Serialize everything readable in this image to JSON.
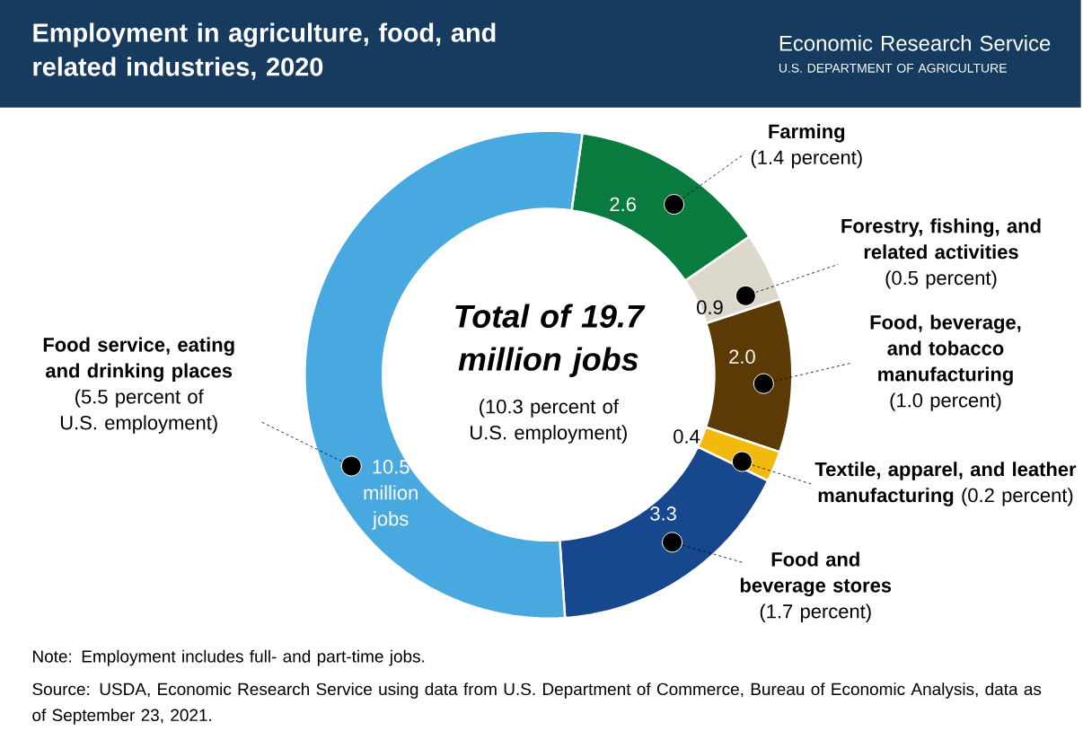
{
  "chart_data": {
    "type": "donut",
    "title": "Employment in agriculture, food, and related industries, 2020",
    "categories": [
      "**Farming** (1.4 percent)",
      "**Forestry, fishing, and related activities** (0.5 percent)",
      "**Food, beverage, and tobacco manufacturing** (1.0 percent)",
      "**Textile, apparel, and leather manufacturing** (0.2 percent)",
      "**Food and beverage stores** (1.7 percent)",
      "**Food service, eating and drinking places** (5.5 percent of U.S. employment)"
    ],
    "values": [
      2.6,
      0.9,
      2.0,
      0.4,
      3.3,
      10.5
    ],
    "value_labels": [
      "2.6",
      "0.9",
      "2.0",
      "0.4",
      "3.3",
      "10.5 million jobs"
    ],
    "legend": false,
    "colors": [
      "#0a7b3e",
      "#dcd8cc",
      "#5c3a06",
      "#f2b90f",
      "#17478c",
      "#47a9e0"
    ],
    "annotations": [
      "Total of 19.7 million jobs",
      "(10.3 percent of U.S. employment)",
      "Note: Employment includes full- and part-time jobs.",
      "Source: USDA, Economic Research Service using data from U.S. Department of Commerce, Bureau of Economic Analysis, data as of September 23, 2021.",
      "Economic Research Service",
      "U.S. DEPARTMENT OF AGRICULTURE"
    ]
  }
}
